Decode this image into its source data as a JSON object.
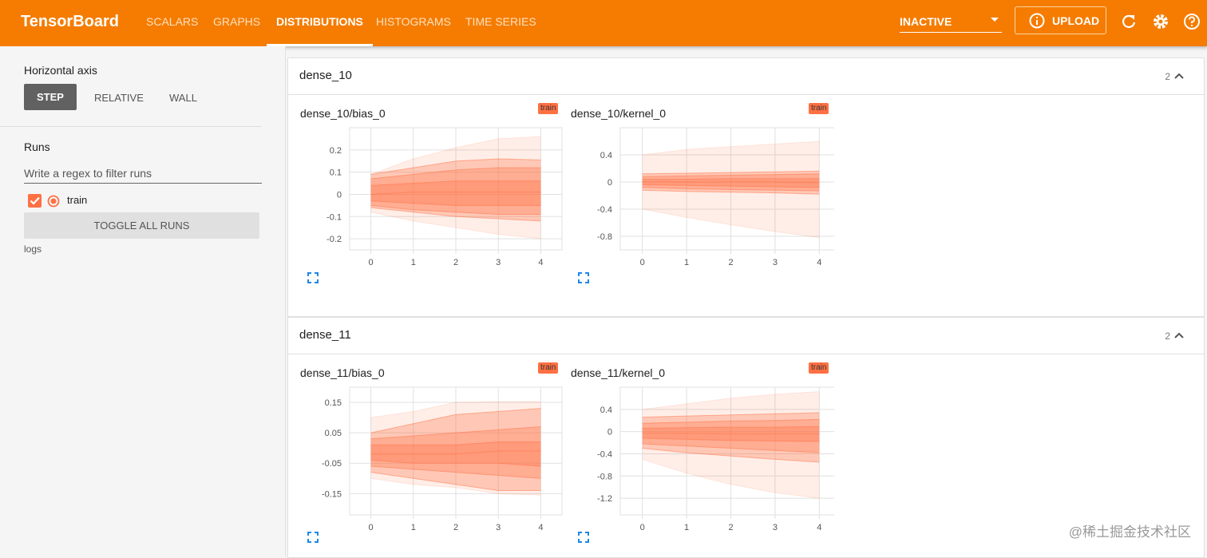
{
  "header": {
    "title": "TensorBoard",
    "tabs": [
      "SCALARS",
      "GRAPHS",
      "DISTRIBUTIONS",
      "HISTOGRAMS",
      "TIME SERIES"
    ],
    "active_tab": 2,
    "status": "INACTIVE",
    "upload": "UPLOAD"
  },
  "sidebar": {
    "axis_label": "Horizontal axis",
    "axis_options": [
      "STEP",
      "RELATIVE",
      "WALL"
    ],
    "runs_label": "Runs",
    "filter_placeholder": "Write a regex to filter runs",
    "run": "train",
    "toggle": "TOGGLE ALL RUNS",
    "logdir": "logs"
  },
  "sections": [
    {
      "name": "dense_10",
      "count": 2,
      "charts": [
        {
          "type": "distribution",
          "title": "dense_10/bias_0",
          "run": "train",
          "color": "#ff7043",
          "x": [
            0,
            1,
            2,
            3,
            4
          ],
          "xlim": [
            -0.5,
            4.5
          ],
          "xticks": [
            0,
            1,
            2,
            3,
            4
          ],
          "ylim": [
            -0.25,
            0.3
          ],
          "yticks": [
            0.2,
            0.1,
            0,
            -0.1,
            -0.2
          ],
          "series": [
            {
              "values": [
                0.09,
                0.16,
                0.21,
                0.25,
                0.26
              ]
            },
            {
              "values": [
                0.09,
                0.12,
                0.15,
                0.16,
                0.155
              ]
            },
            {
              "values": [
                0.07,
                0.09,
                0.11,
                0.12,
                0.12
              ]
            },
            {
              "values": [
                0.04,
                0.05,
                0.06,
                0.06,
                0.06
              ]
            },
            {
              "values": [
                0,
                0.01,
                0.01,
                0.01,
                0.01
              ]
            },
            {
              "values": [
                -0.03,
                -0.04,
                -0.05,
                -0.05,
                -0.05
              ]
            },
            {
              "values": [
                -0.05,
                -0.07,
                -0.08,
                -0.09,
                -0.09
              ]
            },
            {
              "values": [
                -0.06,
                -0.08,
                -0.1,
                -0.11,
                -0.12
              ]
            },
            {
              "values": [
                -0.08,
                -0.12,
                -0.15,
                -0.18,
                -0.2
              ]
            }
          ]
        },
        {
          "type": "distribution",
          "title": "dense_10/kernel_0",
          "run": "train",
          "color": "#ff7043",
          "x": [
            0,
            1,
            2,
            3,
            4
          ],
          "xlim": [
            -0.5,
            4.5
          ],
          "xticks": [
            0,
            1,
            2,
            3,
            4
          ],
          "ylim": [
            -1.0,
            0.8
          ],
          "yticks": [
            0.4,
            0,
            -0.4,
            -0.8
          ],
          "series": [
            {
              "values": [
                0.4,
                0.48,
                0.52,
                0.56,
                0.6
              ]
            },
            {
              "values": [
                0.12,
                0.13,
                0.14,
                0.15,
                0.16
              ]
            },
            {
              "values": [
                0.08,
                0.09,
                0.1,
                0.11,
                0.12
              ]
            },
            {
              "values": [
                0.04,
                0.04,
                0.05,
                0.05,
                0.05
              ]
            },
            {
              "values": [
                0,
                0,
                0,
                0,
                -0.01
              ]
            },
            {
              "values": [
                -0.04,
                -0.05,
                -0.06,
                -0.07,
                -0.08
              ]
            },
            {
              "values": [
                -0.08,
                -0.1,
                -0.11,
                -0.12,
                -0.13
              ]
            },
            {
              "values": [
                -0.12,
                -0.14,
                -0.15,
                -0.16,
                -0.18
              ]
            },
            {
              "values": [
                -0.4,
                -0.52,
                -0.63,
                -0.73,
                -0.82
              ]
            }
          ]
        }
      ]
    },
    {
      "name": "dense_11",
      "count": 2,
      "charts": [
        {
          "type": "distribution",
          "title": "dense_11/bias_0",
          "run": "train",
          "color": "#ff7043",
          "x": [
            0,
            1,
            2,
            3,
            4
          ],
          "xlim": [
            -0.5,
            4.5
          ],
          "xticks": [
            0,
            1,
            2,
            3,
            4
          ],
          "ylim": [
            -0.22,
            0.2
          ],
          "yticks": [
            0.15,
            0.05,
            -0.05,
            -0.15
          ],
          "series": [
            {
              "values": [
                0.1,
                0.12,
                0.15,
                0.152,
                0.152
              ]
            },
            {
              "values": [
                0.05,
                0.08,
                0.11,
                0.12,
                0.13
              ]
            },
            {
              "values": [
                0.03,
                0.04,
                0.05,
                0.06,
                0.07
              ]
            },
            {
              "values": [
                0.01,
                0.01,
                0.01,
                0.02,
                0.02
              ]
            },
            {
              "values": [
                -0.02,
                -0.02,
                -0.02,
                -0.01,
                -0.01
              ]
            },
            {
              "values": [
                -0.04,
                -0.05,
                -0.05,
                -0.05,
                -0.06
              ]
            },
            {
              "values": [
                -0.06,
                -0.07,
                -0.08,
                -0.09,
                -0.1
              ]
            },
            {
              "values": [
                -0.08,
                -0.1,
                -0.12,
                -0.14,
                -0.14
              ]
            },
            {
              "values": [
                -0.1,
                -0.12,
                -0.13,
                -0.15,
                -0.155
              ]
            }
          ]
        },
        {
          "type": "distribution",
          "title": "dense_11/kernel_0",
          "run": "train",
          "color": "#ff7043",
          "x": [
            0,
            1,
            2,
            3,
            4
          ],
          "xlim": [
            -0.5,
            4.5
          ],
          "xticks": [
            0,
            1,
            2,
            3,
            4
          ],
          "ylim": [
            -1.5,
            0.8
          ],
          "yticks": [
            0.4,
            0,
            -0.4,
            -0.8,
            -1.2
          ],
          "series": [
            {
              "values": [
                0.4,
                0.5,
                0.6,
                0.67,
                0.72
              ]
            },
            {
              "values": [
                0.26,
                0.28,
                0.3,
                0.32,
                0.34
              ]
            },
            {
              "values": [
                0.15,
                0.17,
                0.19,
                0.2,
                0.22
              ]
            },
            {
              "values": [
                0.06,
                0.07,
                0.08,
                0.08,
                0.09
              ]
            },
            {
              "values": [
                -0.03,
                -0.03,
                -0.04,
                -0.04,
                -0.04
              ]
            },
            {
              "values": [
                -0.12,
                -0.14,
                -0.16,
                -0.17,
                -0.18
              ]
            },
            {
              "values": [
                -0.22,
                -0.26,
                -0.3,
                -0.34,
                -0.38
              ]
            },
            {
              "values": [
                -0.3,
                -0.38,
                -0.44,
                -0.5,
                -0.55
              ]
            },
            {
              "values": [
                -0.5,
                -0.75,
                -0.95,
                -1.1,
                -1.2
              ]
            }
          ]
        }
      ]
    }
  ],
  "watermark": "@稀土掘金技术社区"
}
